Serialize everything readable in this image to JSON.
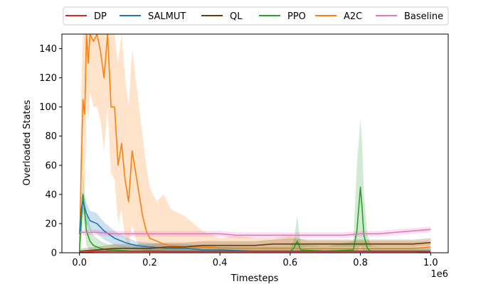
{
  "chart_data": {
    "type": "line",
    "title": "",
    "xlabel": "Timesteps",
    "ylabel": "Overloaded States",
    "x_offset_label": "1e6",
    "xlim": [
      -0.05,
      1.05
    ],
    "ylim": [
      0,
      150
    ],
    "x_ticks": [
      0.0,
      0.2,
      0.4,
      0.6,
      0.8,
      1.0
    ],
    "x_tick_labels": [
      "0.0",
      "0.2",
      "0.4",
      "0.6",
      "0.8",
      "1.0"
    ],
    "y_ticks": [
      0,
      20,
      40,
      60,
      80,
      100,
      120,
      140
    ],
    "y_tick_labels": [
      "0",
      "20",
      "40",
      "60",
      "80",
      "100",
      "120",
      "140"
    ],
    "grid": false,
    "legend_position": "top-center",
    "series": [
      {
        "name": "DP",
        "color": "#d62728",
        "x": [
          0.0,
          0.05,
          0.1,
          0.2,
          0.3,
          0.4,
          0.5,
          0.6,
          0.7,
          0.8,
          0.9,
          1.0
        ],
        "values": [
          0,
          1,
          1,
          1,
          1,
          1,
          1,
          1,
          1,
          1,
          1,
          1
        ],
        "upper": [
          1,
          2,
          2,
          2,
          2,
          2,
          2,
          2,
          2,
          2,
          2,
          2
        ],
        "lower": [
          0,
          0,
          0,
          0,
          0,
          0,
          0,
          0,
          0,
          0,
          0,
          0
        ]
      },
      {
        "name": "SALMUT",
        "color": "#1f77b4",
        "x": [
          0.0,
          0.005,
          0.01,
          0.02,
          0.03,
          0.05,
          0.07,
          0.1,
          0.13,
          0.16,
          0.2,
          0.25,
          0.3,
          0.35,
          0.4,
          0.5,
          0.6,
          0.7,
          0.8,
          0.9,
          1.0
        ],
        "values": [
          13,
          30,
          35,
          27,
          22,
          20,
          15,
          10,
          7,
          5,
          4,
          3,
          3,
          2,
          2,
          1,
          1,
          1,
          1,
          1,
          1
        ],
        "upper": [
          17,
          38,
          42,
          34,
          29,
          27,
          21,
          15,
          11,
          8,
          7,
          6,
          6,
          5,
          4,
          3,
          3,
          3,
          3,
          3,
          3
        ],
        "lower": [
          9,
          22,
          28,
          20,
          15,
          13,
          9,
          5,
          3,
          2,
          1,
          0,
          0,
          0,
          0,
          0,
          0,
          0,
          0,
          0,
          0
        ]
      },
      {
        "name": "QL",
        "color": "#6b3a06",
        "x": [
          0.0,
          0.05,
          0.1,
          0.15,
          0.2,
          0.25,
          0.3,
          0.35,
          0.4,
          0.45,
          0.5,
          0.55,
          0.6,
          0.65,
          0.7,
          0.75,
          0.8,
          0.85,
          0.9,
          0.95,
          1.0
        ],
        "values": [
          1,
          2,
          3,
          3,
          3,
          4,
          4,
          5,
          5,
          5,
          5,
          6,
          6,
          6,
          6,
          6,
          6,
          6,
          6,
          6,
          7
        ],
        "upper": [
          3,
          4,
          6,
          6,
          6,
          7,
          7,
          8,
          8,
          8,
          8,
          9,
          10,
          9,
          9,
          9,
          9,
          9,
          9,
          9,
          10
        ],
        "lower": [
          0,
          0,
          1,
          1,
          1,
          2,
          2,
          3,
          3,
          3,
          3,
          3,
          3,
          4,
          4,
          4,
          4,
          4,
          4,
          4,
          5
        ]
      },
      {
        "name": "PPO",
        "color": "#2ca02c",
        "x": [
          0.0,
          0.005,
          0.01,
          0.015,
          0.02,
          0.03,
          0.04,
          0.06,
          0.08,
          0.1,
          0.15,
          0.2,
          0.3,
          0.4,
          0.5,
          0.6,
          0.61,
          0.62,
          0.63,
          0.7,
          0.78,
          0.79,
          0.8,
          0.805,
          0.81,
          0.82,
          0.83,
          0.85,
          0.9,
          0.95,
          1.0
        ],
        "values": [
          1,
          20,
          40,
          28,
          15,
          8,
          5,
          3,
          2,
          2,
          1,
          1,
          1,
          1,
          1,
          1,
          3,
          8,
          2,
          1,
          2,
          15,
          45,
          30,
          12,
          3,
          1,
          1,
          1,
          1,
          0
        ],
        "upper": [
          3,
          30,
          55,
          42,
          28,
          18,
          12,
          8,
          6,
          5,
          4,
          4,
          4,
          4,
          4,
          4,
          8,
          25,
          6,
          4,
          8,
          60,
          92,
          75,
          40,
          12,
          5,
          4,
          4,
          4,
          3
        ],
        "lower": [
          0,
          10,
          25,
          15,
          5,
          1,
          0,
          0,
          0,
          0,
          0,
          0,
          0,
          0,
          0,
          0,
          0,
          0,
          0,
          0,
          0,
          0,
          5,
          2,
          0,
          0,
          0,
          0,
          0,
          0,
          0
        ]
      },
      {
        "name": "A2C",
        "color": "#ff7f0e",
        "x": [
          0.0,
          0.005,
          0.01,
          0.015,
          0.02,
          0.025,
          0.03,
          0.04,
          0.05,
          0.06,
          0.07,
          0.08,
          0.09,
          0.1,
          0.11,
          0.12,
          0.13,
          0.14,
          0.15,
          0.16,
          0.17,
          0.18,
          0.19,
          0.2,
          0.22,
          0.24,
          0.26,
          0.3,
          0.35,
          0.4,
          0.45,
          0.5,
          0.55,
          0.6,
          0.65,
          0.7,
          0.75,
          0.8,
          0.85,
          0.9,
          0.95,
          1.0
        ],
        "values": [
          0,
          60,
          105,
          95,
          150,
          130,
          150,
          145,
          150,
          138,
          120,
          150,
          100,
          100,
          60,
          75,
          50,
          35,
          70,
          55,
          40,
          25,
          15,
          10,
          8,
          6,
          5,
          4,
          4,
          3,
          3,
          3,
          3,
          3,
          3,
          3,
          3,
          3,
          3,
          3,
          3,
          4
        ],
        "upper": [
          0,
          110,
          150,
          150,
          150,
          150,
          150,
          150,
          150,
          150,
          150,
          150,
          150,
          150,
          130,
          150,
          120,
          100,
          140,
          120,
          100,
          80,
          60,
          45,
          35,
          40,
          30,
          25,
          15,
          10,
          12,
          10,
          10,
          12,
          8,
          8,
          8,
          8,
          8,
          8,
          8,
          8
        ],
        "lower": [
          0,
          15,
          50,
          40,
          100,
          90,
          110,
          100,
          100,
          90,
          70,
          100,
          55,
          50,
          20,
          30,
          10,
          5,
          20,
          10,
          5,
          2,
          0,
          0,
          0,
          0,
          0,
          0,
          0,
          0,
          0,
          0,
          0,
          0,
          0,
          0,
          0,
          0,
          0,
          0,
          0,
          0
        ]
      },
      {
        "name": "Baseline",
        "color": "#e377c2",
        "x": [
          0.0,
          0.05,
          0.1,
          0.15,
          0.2,
          0.25,
          0.3,
          0.35,
          0.4,
          0.45,
          0.5,
          0.55,
          0.6,
          0.65,
          0.7,
          0.75,
          0.8,
          0.85,
          0.9,
          0.95,
          1.0
        ],
        "values": [
          14,
          14,
          13,
          13,
          13,
          13,
          13,
          13,
          13,
          12,
          12,
          12,
          12,
          12,
          12,
          12,
          13,
          13,
          14,
          15,
          16
        ],
        "upper": [
          16,
          16,
          15,
          15,
          15,
          15,
          15,
          15,
          15,
          14,
          14,
          14,
          14,
          14,
          14,
          14,
          15,
          15,
          16,
          17,
          18
        ],
        "lower": [
          12,
          12,
          11,
          11,
          11,
          11,
          11,
          11,
          11,
          10,
          10,
          10,
          10,
          10,
          10,
          10,
          11,
          11,
          12,
          13,
          14
        ]
      }
    ]
  }
}
